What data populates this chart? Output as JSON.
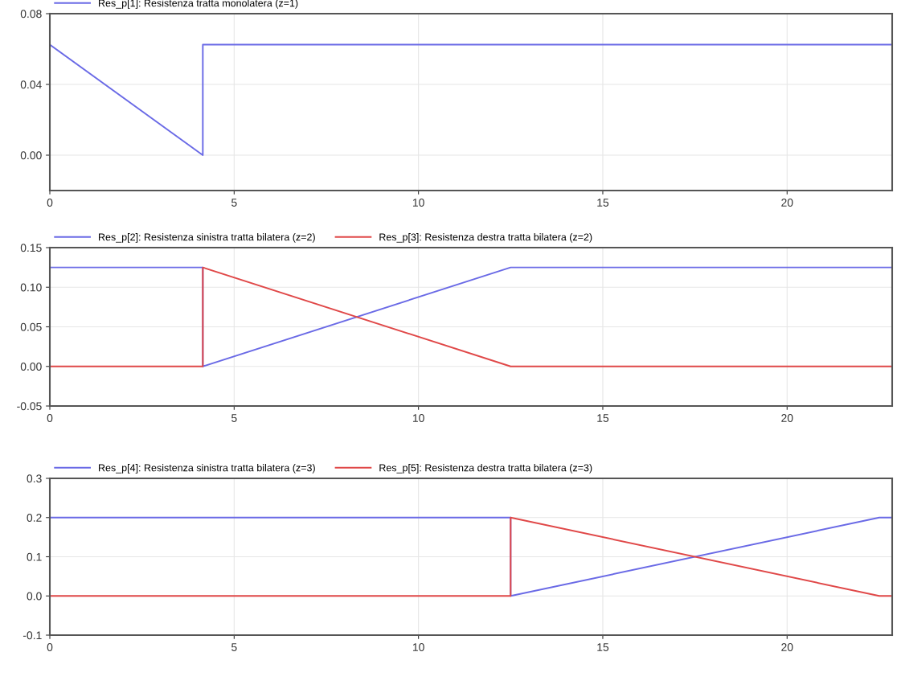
{
  "chart_data": [
    {
      "type": "line",
      "legend": "top left",
      "grid": true,
      "line_style": "solid",
      "xlim": [
        0,
        22.85
      ],
      "xticks": [
        0,
        5,
        10,
        15,
        20
      ],
      "ylim": [
        -0.02,
        0.08
      ],
      "yticks": [
        {
          "value": 0,
          "label": "0.00"
        },
        {
          "value": 0.04,
          "label": "0.04"
        },
        {
          "value": 0.08,
          "label": "0.08"
        }
      ],
      "series": [
        {
          "name": "Res_p[1]: Resistenza tratta monolatera (z=1)",
          "color": "#6a6ae6",
          "x": [
            0,
            4.15,
            4.15,
            22.85
          ],
          "values": [
            0.0625,
            0,
            0.0625,
            0.0625
          ]
        }
      ]
    },
    {
      "type": "line",
      "legend": "top left",
      "grid": true,
      "line_style": "solid",
      "xlim": [
        0,
        22.85
      ],
      "xticks": [
        0,
        5,
        10,
        15,
        20
      ],
      "ylim": [
        -0.05,
        0.15
      ],
      "yticks": [
        {
          "value": -0.05,
          "label": "-0.05"
        },
        {
          "value": 0,
          "label": "0.00"
        },
        {
          "value": 0.05,
          "label": "0.05"
        },
        {
          "value": 0.1,
          "label": "0.10"
        },
        {
          "value": 0.15,
          "label": "0.15"
        }
      ],
      "series": [
        {
          "name": "Res_p[2]: Resistenza sinistra tratta bilatera (z=2)",
          "color": "#6a6ae6",
          "x": [
            0,
            4.15,
            4.15,
            12.5,
            22.85
          ],
          "values": [
            0.125,
            0.125,
            0,
            0.125,
            0.125
          ]
        },
        {
          "name": "Res_p[3]: Resistenza destra tratta bilatera (z=2)",
          "color": "#e04848",
          "x": [
            0,
            4.15,
            4.15,
            12.5,
            22.85
          ],
          "values": [
            0,
            0,
            0.125,
            0,
            0
          ]
        }
      ]
    },
    {
      "type": "line",
      "legend": "top left",
      "grid": true,
      "line_style": "solid",
      "xlim": [
        0,
        22.85
      ],
      "xticks": [
        0,
        5,
        10,
        15,
        20
      ],
      "ylim": [
        -0.1,
        0.3
      ],
      "yticks": [
        {
          "value": -0.1,
          "label": "-0.1"
        },
        {
          "value": 0,
          "label": "0.0"
        },
        {
          "value": 0.1,
          "label": "0.1"
        },
        {
          "value": 0.2,
          "label": "0.2"
        },
        {
          "value": 0.3,
          "label": "0.3"
        }
      ],
      "series": [
        {
          "name": "Res_p[4]: Resistenza sinistra tratta bilatera (z=3)",
          "color": "#6a6ae6",
          "x": [
            0,
            12.5,
            12.5,
            22.5,
            22.85
          ],
          "values": [
            0.2,
            0.2,
            0,
            0.2,
            0.2
          ]
        },
        {
          "name": "Res_p[5]: Resistenza destra tratta bilatera (z=3)",
          "color": "#e04848",
          "x": [
            0,
            12.5,
            12.5,
            22.5,
            22.85
          ],
          "values": [
            0,
            0,
            0.2,
            0,
            0
          ]
        }
      ]
    }
  ]
}
